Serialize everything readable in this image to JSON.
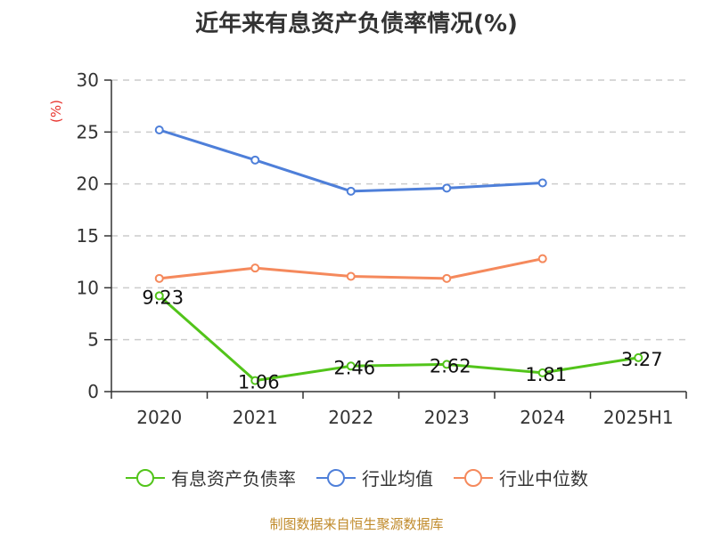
{
  "chart_data": {
    "type": "line",
    "title": "近年来有息资产负债率情况(%)",
    "ylabel": "(%)",
    "categories": [
      "2020",
      "2021",
      "2022",
      "2023",
      "2024",
      "2025H1"
    ],
    "ylim": [
      0,
      30
    ],
    "yticks": [
      0,
      5,
      10,
      15,
      20,
      25,
      30
    ],
    "grid": true,
    "legend_position": "bottom",
    "series": [
      {
        "name": "有息资产负债率",
        "color": "#52c41a",
        "values": [
          9.23,
          1.06,
          2.46,
          2.62,
          1.81,
          3.27
        ],
        "labels": true
      },
      {
        "name": "行业均值",
        "color": "#4e7fd9",
        "values": [
          25.2,
          22.3,
          19.3,
          19.6,
          20.1,
          null
        ],
        "labels": false
      },
      {
        "name": "行业中位数",
        "color": "#f5895c",
        "values": [
          10.9,
          11.9,
          11.1,
          10.9,
          12.8,
          null
        ],
        "labels": false
      }
    ]
  },
  "source_note": "制图数据来自恒生聚源数据库",
  "colors": {
    "axis": "#333333",
    "grid": "#cccccc",
    "ylabel": "#e8342e",
    "source": "#c08a2a"
  }
}
